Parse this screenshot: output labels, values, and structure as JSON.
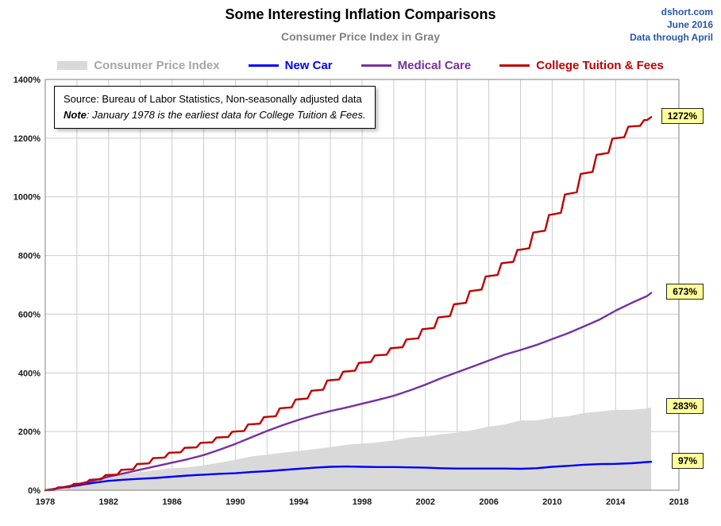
{
  "header": {
    "brand": "dshort.com",
    "date": "June 2016",
    "through": "Data through April"
  },
  "annotation_box": {
    "source_text": "Source: Bureau of Labor Statistics, Non-seasonally adjusted data",
    "note_label": "Note",
    "note_rest": ": January 1978 is the earliest data for College Tuition & Fees."
  },
  "chart_data": {
    "type": "line",
    "title": "Some Interesting Inflation Comparisons",
    "subtitle": "Consumer Price Index in Gray",
    "xlabel": "",
    "ylabel": "",
    "x_range": [
      1978,
      2018
    ],
    "y_range": [
      0,
      1400
    ],
    "x_grid_step": 2,
    "y_grid_step": 200,
    "x_ticks": [
      1978,
      1982,
      1986,
      1990,
      1994,
      1998,
      2002,
      2006,
      2010,
      2014,
      2018
    ],
    "y_ticks": [
      "0%",
      "200%",
      "400%",
      "600%",
      "800%",
      "1000%",
      "1200%",
      "1400%"
    ],
    "x": [
      1978,
      1979,
      1980,
      1981,
      1982,
      1983,
      1984,
      1985,
      1986,
      1987,
      1988,
      1989,
      1990,
      1991,
      1992,
      1993,
      1994,
      1995,
      1996,
      1997,
      1998,
      1999,
      2000,
      2001,
      2002,
      2003,
      2004,
      2005,
      2006,
      2007,
      2008,
      2009,
      2010,
      2011,
      2012,
      2013,
      2014,
      2015,
      2016,
      2016.25
    ],
    "legend_position": "top",
    "grid": true,
    "series": [
      {
        "name": "Consumer Price Index",
        "type": "area",
        "color": "#D9D9D9",
        "label_color": "#A6A6A6",
        "end_label": "283%",
        "values": [
          0,
          9,
          24,
          40,
          51,
          56,
          62,
          69,
          75,
          78,
          85,
          94,
          104,
          115,
          121,
          128,
          134,
          140,
          147,
          155,
          159,
          163,
          170,
          180,
          183,
          191,
          196,
          205,
          217,
          224,
          238,
          238,
          247,
          252,
          263,
          268,
          274,
          274,
          279,
          283
        ]
      },
      {
        "name": "New Car",
        "type": "line",
        "color": "#0000FF",
        "label_color": "#0000FF",
        "end_label": "97%",
        "values": [
          0,
          8,
          16,
          25,
          32,
          36,
          39,
          42,
          46,
          50,
          53,
          56,
          58,
          62,
          65,
          69,
          73,
          77,
          80,
          81,
          80,
          79,
          79,
          78,
          77,
          75,
          74,
          74,
          74,
          74,
          73,
          75,
          80,
          83,
          87,
          89,
          90,
          92,
          96,
          97
        ]
      },
      {
        "name": "Medical Care",
        "type": "line",
        "color": "#7630A0",
        "label_color": "#7630A0",
        "end_label": "673%",
        "values": [
          0,
          9,
          20,
          32,
          46,
          58,
          70,
          82,
          94,
          106,
          120,
          138,
          158,
          180,
          202,
          222,
          240,
          256,
          270,
          282,
          295,
          308,
          322,
          340,
          360,
          382,
          402,
          422,
          442,
          462,
          478,
          495,
          515,
          535,
          558,
          582,
          612,
          638,
          662,
          673
        ]
      },
      {
        "name": "College Tuition & Fees",
        "type": "step",
        "color": "#C00000",
        "label_color": "#C00000",
        "end_label": "1272%",
        "values": [
          0,
          10,
          22,
          36,
          52,
          70,
          90,
          110,
          128,
          145,
          162,
          180,
          200,
          225,
          250,
          280,
          310,
          340,
          375,
          405,
          435,
          460,
          485,
          515,
          550,
          590,
          635,
          680,
          730,
          775,
          820,
          880,
          940,
          1010,
          1080,
          1145,
          1200,
          1240,
          1262,
          1272
        ]
      }
    ]
  }
}
